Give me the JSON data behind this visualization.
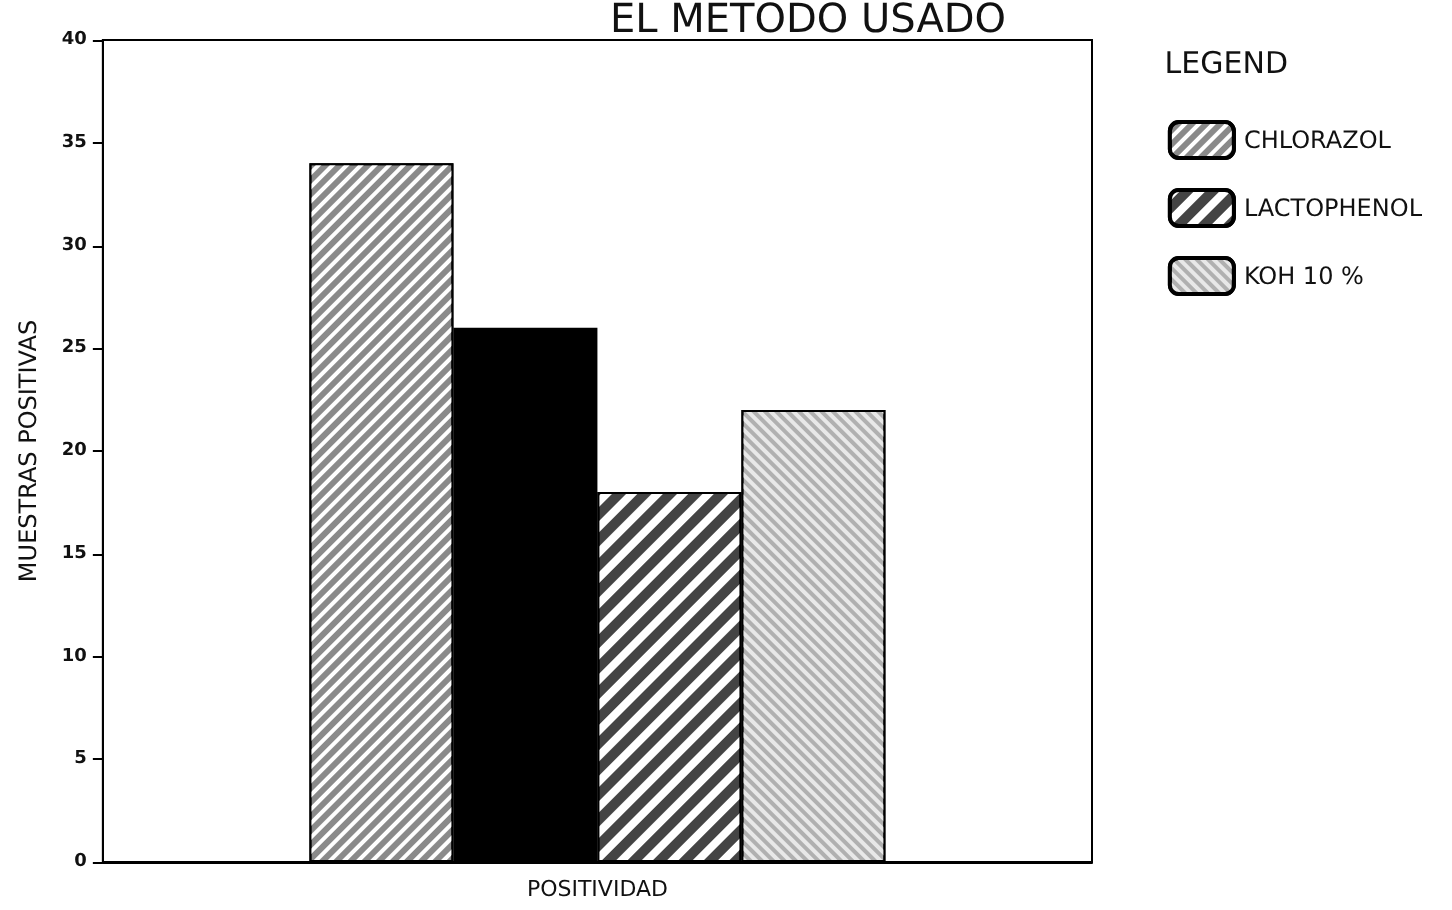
{
  "chart_data": {
    "type": "bar",
    "title": "EL METODO USADO",
    "categories": [
      "POSITIVIDAD"
    ],
    "ylabel": "MUESTRAS POSITIVAS",
    "legend_title": "LEGEND",
    "legend": "right",
    "series": [
      {
        "name": "CHLORAZOL",
        "color": "#8a8a8a",
        "values": [
          34
        ]
      },
      {
        "color": "#000000",
        "values": [
          26
        ]
      },
      {
        "name": "LACTOPHENOL",
        "color": "#444444",
        "values": [
          18
        ]
      },
      {
        "name": "KOH 10 %",
        "color": "#b0b0b0",
        "values": [
          22
        ]
      }
    ],
    "ylim": [
      0,
      40
    ],
    "yticks": [
      0,
      5,
      10,
      15,
      20,
      25,
      30,
      35,
      40
    ],
    "grid": false
  }
}
